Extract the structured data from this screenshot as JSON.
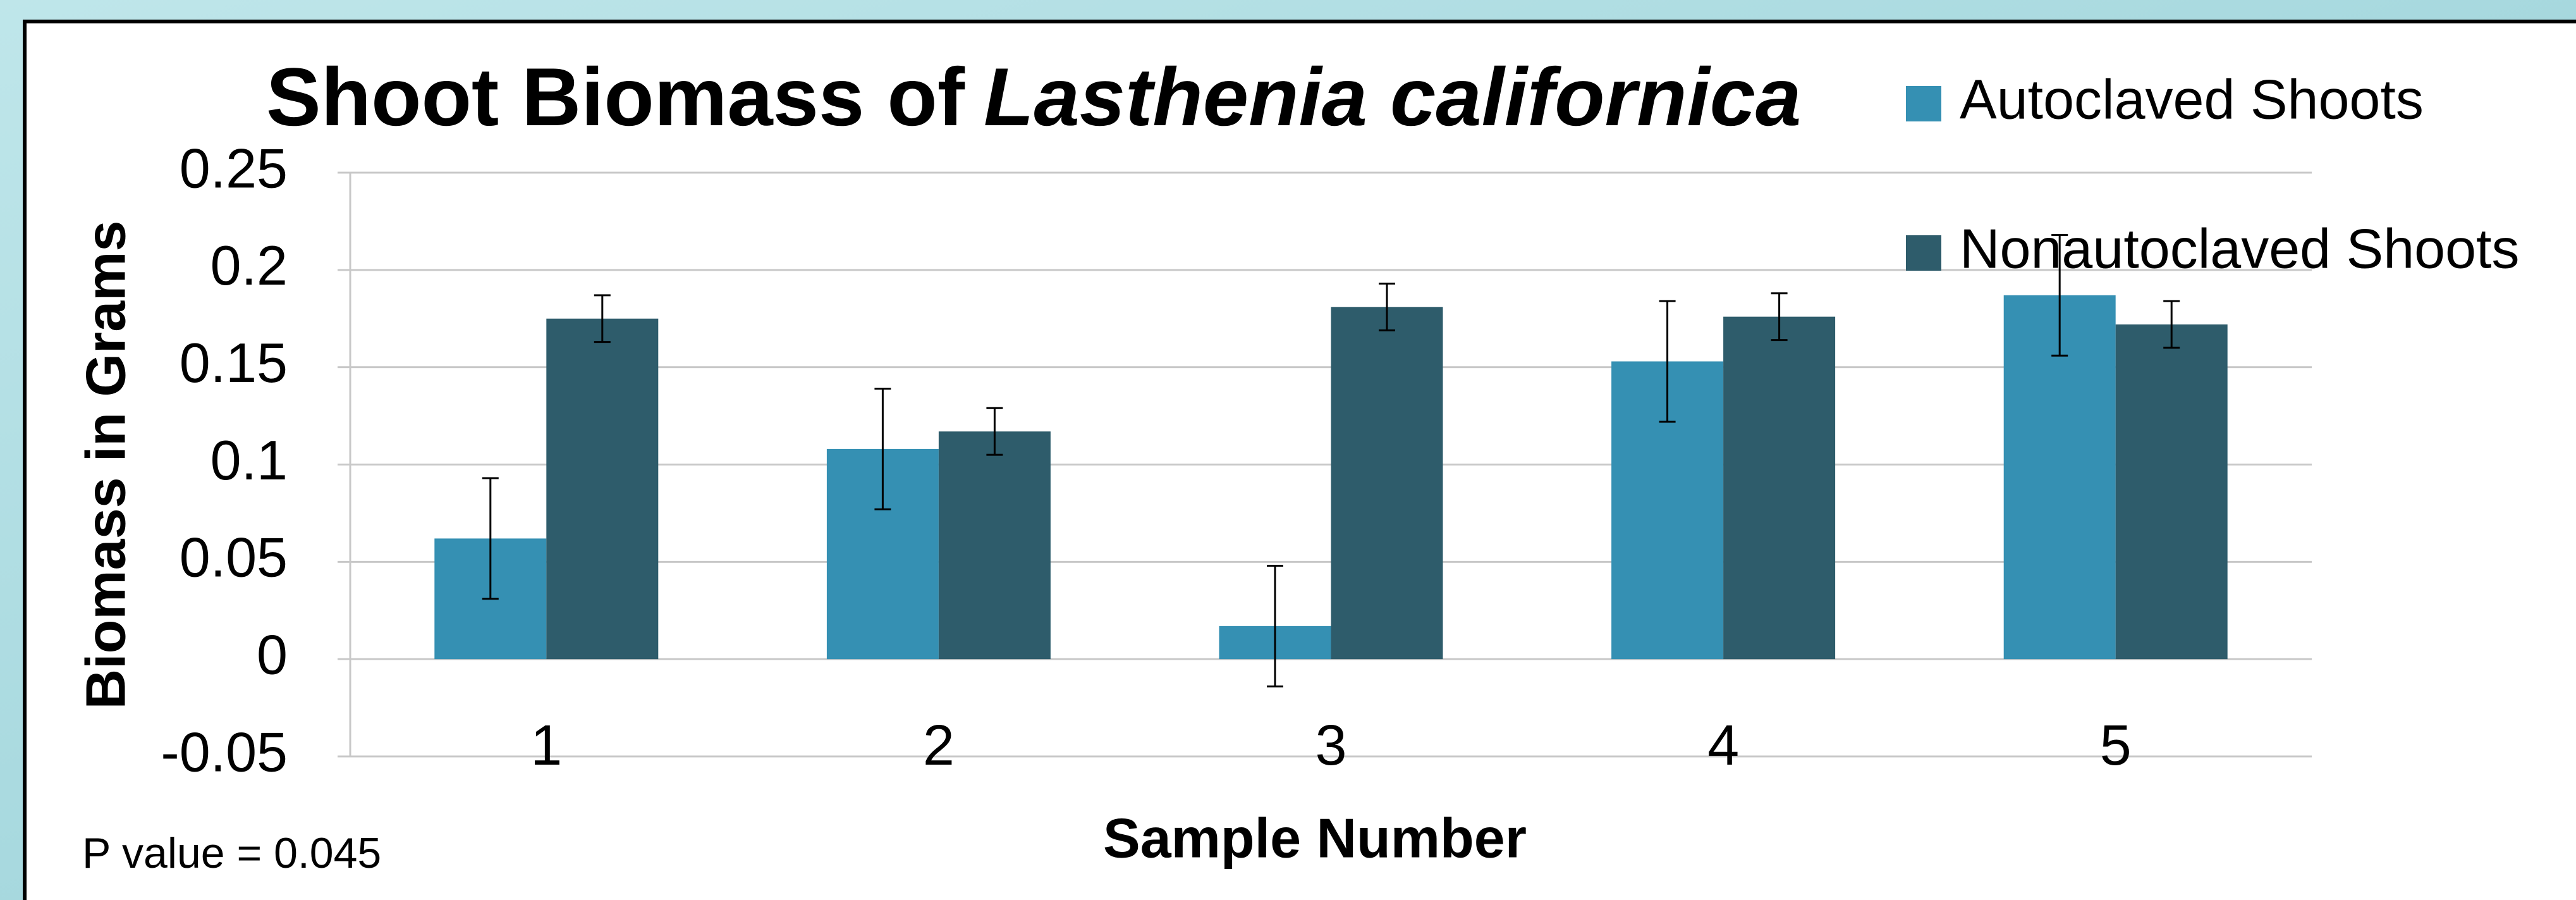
{
  "chart_data": {
    "type": "bar",
    "title": [
      "Shoot Biomass of",
      "Lasthenia californica"
    ],
    "x_label": "Sample Number",
    "y_label": "Biomass in Grams",
    "annotation": "P value = 0.045",
    "categories": [
      "1",
      "2",
      "3",
      "4",
      "5"
    ],
    "series": [
      {
        "name": "Autoclaved Shoots",
        "color": "#3590b3",
        "values": [
          0.062,
          0.108,
          0.017,
          0.153,
          0.187
        ],
        "errors": [
          0.031,
          0.031,
          0.031,
          0.031,
          0.031
        ]
      },
      {
        "name": "Nonautoclaved Shoots",
        "color": "#2e5c6b",
        "values": [
          0.175,
          0.117,
          0.181,
          0.176,
          0.172
        ],
        "errors": [
          0.012,
          0.012,
          0.012,
          0.012,
          0.012
        ]
      }
    ],
    "ylim": [
      -0.05,
      0.25
    ],
    "yticks": [
      -0.05,
      0,
      0.05,
      0.1,
      0.15,
      0.2,
      0.25
    ],
    "grid": true,
    "legend": "top-right"
  }
}
